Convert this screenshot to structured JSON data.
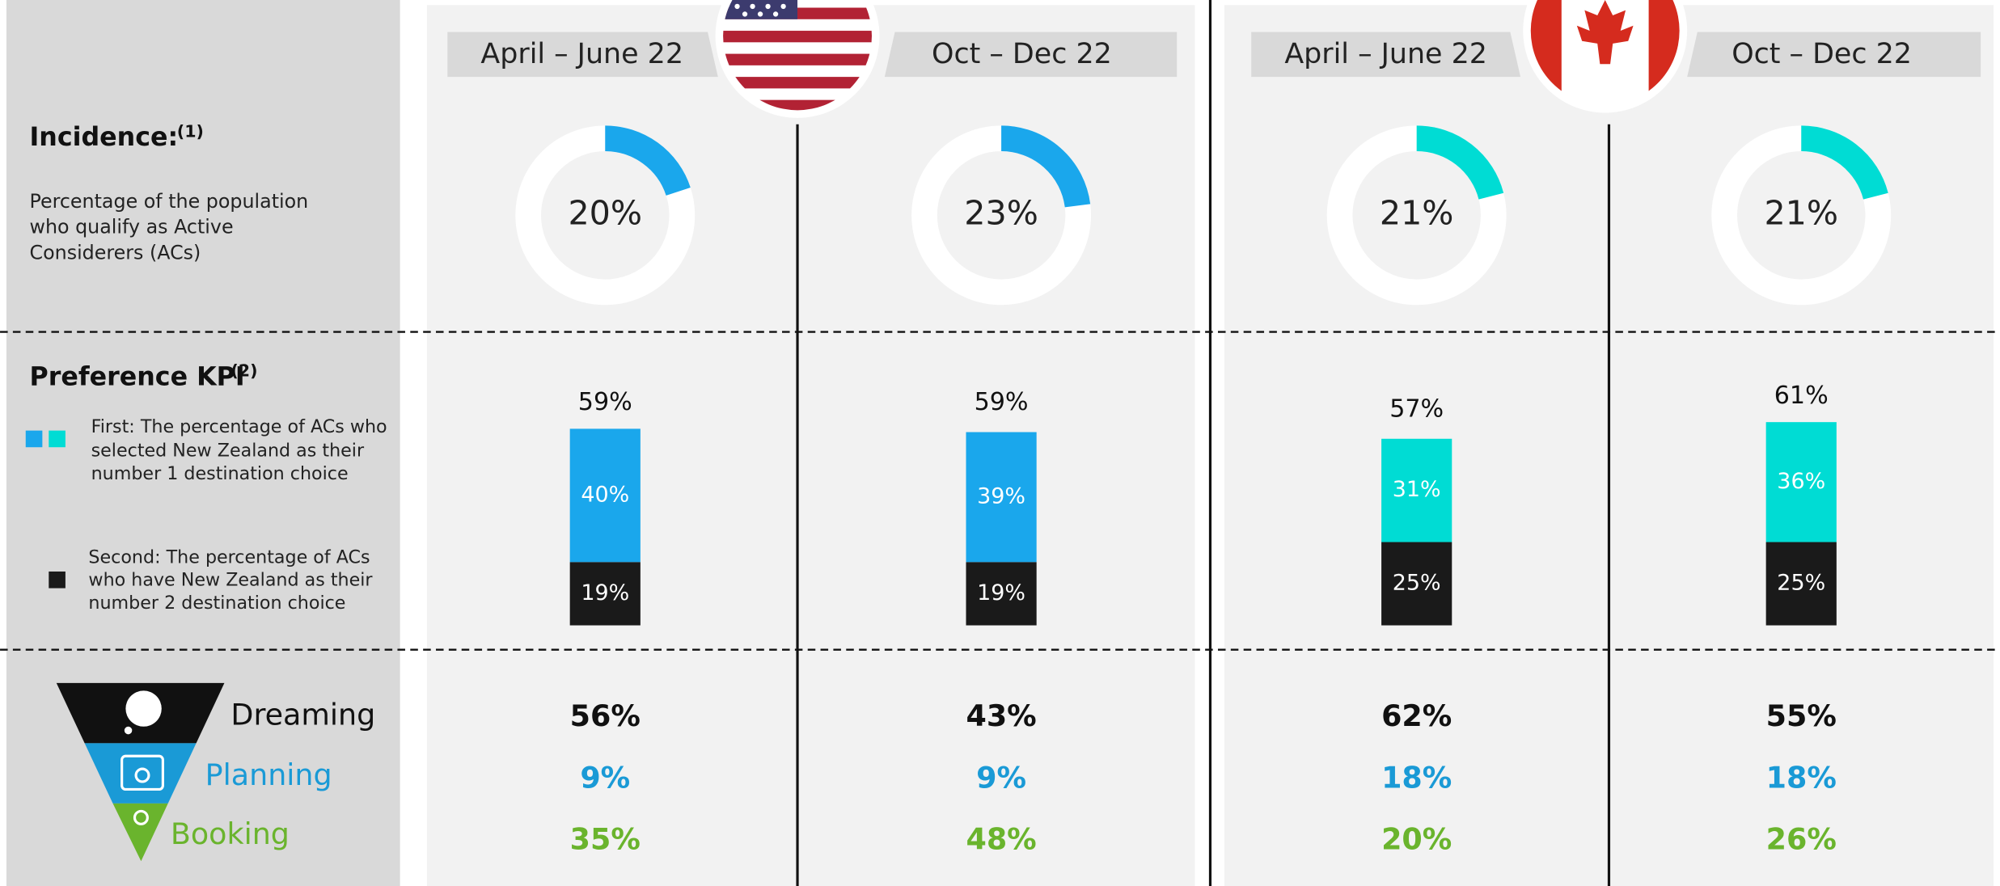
{
  "sidebar": {
    "incidence": {
      "title": "Incidence:",
      "note": "(1)",
      "description": [
        "Percentage of the population",
        "who qualify as Active",
        "Considerers (ACs)"
      ]
    },
    "preference": {
      "title": "Preference KPI",
      "note": "(2)",
      "first": {
        "label": "First:",
        "lines": [
          " The percentage of ACs who",
          "selected New Zealand as their",
          "number 1 destination choice"
        ]
      },
      "second": {
        "label": "Second:",
        "lines": [
          " The percentage of ACs",
          "who have New Zealand as their",
          "number 2 destination choice"
        ]
      }
    },
    "funnel": [
      "Dreaming",
      "Planning",
      "Booking"
    ]
  },
  "countries": [
    {
      "color": "#1aa7ec",
      "periods": [
        {
          "period": "April – June 22",
          "incidence": 20,
          "incidence_label": "20%",
          "preference": {
            "total": 59,
            "total_label": "59%",
            "first": 40,
            "first_label": "40%",
            "second": 19,
            "second_label": "19%"
          },
          "funnel": [
            56,
            9,
            35
          ],
          "funnel_labels": [
            "56%",
            "9%",
            "35%"
          ]
        },
        {
          "period": "Oct – Dec 22",
          "incidence": 23,
          "incidence_label": "23%",
          "preference": {
            "total": 59,
            "total_label": "59%",
            "first": 39,
            "first_label": "39%",
            "second": 19,
            "second_label": "19%"
          },
          "funnel": [
            43,
            9,
            48
          ],
          "funnel_labels": [
            "43%",
            "9%",
            "48%"
          ]
        }
      ]
    },
    {
      "color": "#00dcd4",
      "periods": [
        {
          "period": "April – June 22",
          "incidence": 21,
          "incidence_label": "21%",
          "preference": {
            "total": 57,
            "total_label": "57%",
            "first": 31,
            "first_label": "31%",
            "second": 25,
            "second_label": "25%"
          },
          "funnel": [
            62,
            18,
            20
          ],
          "funnel_labels": [
            "62%",
            "18%",
            "20%"
          ]
        },
        {
          "period": "Oct – Dec 22",
          "incidence": 21,
          "incidence_label": "21%",
          "preference": {
            "total": 61,
            "total_label": "61%",
            "first": 36,
            "first_label": "36%",
            "second": 25,
            "second_label": "25%"
          },
          "funnel": [
            55,
            18,
            26
          ],
          "funnel_labels": [
            "55%",
            "18%",
            "26%"
          ]
        }
      ]
    }
  ]
}
